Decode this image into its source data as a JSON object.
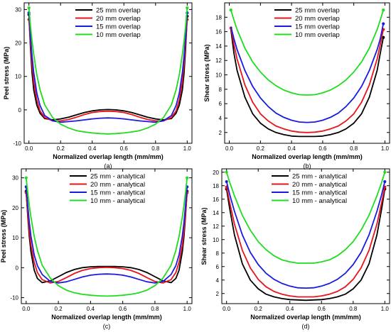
{
  "colors": {
    "black": "#000000",
    "red": "#e8141b",
    "blue": "#1a1ae0",
    "green": "#1fdc1f"
  },
  "chart_data": [
    {
      "type": "line",
      "caption": "(a)",
      "xlabel": "Normalized overlap length (mm/mm)",
      "ylabel": "Peel stress (MPa)",
      "xlim": [
        -0.03,
        1.03
      ],
      "ylim": [
        -10,
        32
      ],
      "xticks": [
        "0.0",
        "0.2",
        "0.4",
        "0.6",
        "0.8",
        "1.0"
      ],
      "yticks": [
        "-10",
        "0",
        "10",
        "20",
        "30"
      ],
      "legend_position": "top-center",
      "x": [
        0,
        0.01,
        0.02,
        0.03,
        0.05,
        0.07,
        0.1,
        0.15,
        0.2,
        0.25,
        0.3,
        0.35,
        0.4,
        0.45,
        0.5,
        0.55,
        0.6,
        0.65,
        0.7,
        0.75,
        0.8,
        0.85,
        0.9,
        0.93,
        0.95,
        0.97,
        0.98,
        0.99,
        1.0
      ],
      "series": [
        {
          "name": "25 mm overlap",
          "color": "black",
          "markers": [
            0,
            28
          ],
          "values": [
            28.5,
            18.3,
            11,
            6,
            1.4,
            -1,
            -2.6,
            -3,
            -2.7,
            -2.2,
            -1.5,
            -0.8,
            -0.3,
            0,
            0.1,
            0,
            -0.3,
            -0.8,
            -1.5,
            -2.2,
            -2.7,
            -3,
            -2.6,
            -1,
            1.4,
            6,
            11,
            18.3,
            28
          ]
        },
        {
          "name": "20 mm overlap",
          "color": "red",
          "markers": [
            0,
            28
          ],
          "values": [
            27,
            19.8,
            13.5,
            8.5,
            3,
            -0.3,
            -2.3,
            -3.3,
            -3.3,
            -2.9,
            -2.2,
            -1.4,
            -0.8,
            -0.5,
            -0.4,
            -0.5,
            -0.8,
            -1.4,
            -2.2,
            -2.9,
            -3.3,
            -3.3,
            -2.3,
            -0.3,
            3,
            8.5,
            13.5,
            19.8,
            27
          ]
        },
        {
          "name": "15 mm overlap",
          "color": "blue",
          "markers": [
            0,
            28
          ],
          "values": [
            29,
            21.8,
            16,
            11.2,
            5,
            1.3,
            -1.7,
            -3.3,
            -3.7,
            -3.5,
            -3.3,
            -3,
            -2.7,
            -2.5,
            -2.4,
            -2.5,
            -2.7,
            -3,
            -3.3,
            -3.5,
            -3.7,
            -3.3,
            -1.7,
            1.3,
            5,
            11.2,
            16,
            21.8,
            29
          ]
        },
        {
          "name": "10 mm overlap",
          "color": "green",
          "markers": [
            0,
            28
          ],
          "values": [
            30.5,
            25,
            20.5,
            16.7,
            10.5,
            6,
            1.5,
            -2.3,
            -4.3,
            -5.4,
            -6.2,
            -6.6,
            -6.9,
            -7.1,
            -7.2,
            -7.1,
            -6.9,
            -6.6,
            -6.2,
            -5.4,
            -4.3,
            -2.3,
            1.5,
            6,
            10.5,
            16.7,
            20.5,
            25,
            30.5
          ]
        }
      ]
    },
    {
      "type": "line",
      "caption": "(b)",
      "xlabel": "Normalized overlap length (mm/mm)",
      "ylabel": "Shear stress (MPa)",
      "xlim": [
        -0.03,
        1.03
      ],
      "ylim": [
        0.5,
        20
      ],
      "xticks": [
        "0.0",
        "0.2",
        "0.4",
        "0.6",
        "0.8",
        "1.0"
      ],
      "yticks": [
        "2",
        "4",
        "6",
        "8",
        "10",
        "12",
        "14",
        "16",
        "18"
      ],
      "legend_position": "top-center",
      "x": [
        0.01,
        0.03,
        0.05,
        0.1,
        0.15,
        0.2,
        0.25,
        0.3,
        0.35,
        0.4,
        0.45,
        0.5,
        0.55,
        0.6,
        0.65,
        0.7,
        0.75,
        0.8,
        0.85,
        0.9,
        0.95,
        0.97,
        0.99
      ],
      "series": [
        {
          "name": "25 mm overlap",
          "color": "black",
          "markers": [
            22
          ],
          "values": [
            16.3,
            13,
            10.6,
            6.9,
            4.6,
            3.3,
            2.5,
            2,
            1.7,
            1.5,
            1.45,
            1.45,
            1.45,
            1.5,
            1.7,
            2,
            2.5,
            3.3,
            4.6,
            6.9,
            10.6,
            13,
            15.2
          ]
        },
        {
          "name": "20 mm overlap",
          "color": "red",
          "markers": [
            0,
            22
          ],
          "values": [
            16.5,
            14.2,
            12.2,
            8.6,
            6.2,
            4.6,
            3.6,
            2.9,
            2.5,
            2.2,
            2.05,
            2,
            2.05,
            2.2,
            2.5,
            2.9,
            3.6,
            4.6,
            6.2,
            8.6,
            12.2,
            14.2,
            16.3
          ]
        },
        {
          "name": "15 mm overlap",
          "color": "blue",
          "markers": [
            22
          ],
          "values": [
            16.7,
            15,
            13.5,
            10.6,
            8.4,
            6.8,
            5.6,
            4.7,
            4.1,
            3.7,
            3.45,
            3.4,
            3.45,
            3.7,
            4.1,
            4.7,
            5.6,
            6.8,
            8.4,
            10.6,
            13.5,
            15,
            17.1
          ]
        },
        {
          "name": "10 mm overlap",
          "color": "green",
          "markers": [
            0,
            22
          ],
          "values": [
            19,
            17.6,
            16.3,
            13.7,
            11.8,
            10.4,
            9.3,
            8.5,
            7.9,
            7.5,
            7.25,
            7.2,
            7.25,
            7.5,
            7.9,
            8.5,
            9.3,
            10.4,
            11.8,
            13.7,
            16.3,
            17.6,
            19
          ]
        }
      ]
    },
    {
      "type": "line",
      "caption": "(c)",
      "xlabel": "Normalized overlap length (mm/mm)",
      "ylabel": "Peel stress (MPa)",
      "xlim": [
        -0.03,
        1.03
      ],
      "ylim": [
        -12,
        33
      ],
      "xticks": [
        "0.0",
        "0.2",
        "0.4",
        "0.6",
        "0.8",
        "1.0"
      ],
      "yticks": [
        "-10",
        "0",
        "10",
        "20",
        "30"
      ],
      "legend_position": "top-center",
      "x": [
        0,
        0.01,
        0.02,
        0.03,
        0.05,
        0.07,
        0.1,
        0.15,
        0.2,
        0.25,
        0.3,
        0.35,
        0.4,
        0.45,
        0.5,
        0.55,
        0.6,
        0.65,
        0.7,
        0.75,
        0.8,
        0.85,
        0.9,
        0.93,
        0.95,
        0.97,
        0.98,
        0.99,
        1.0
      ],
      "series": [
        {
          "name": "25 mm - analytical",
          "color": "black",
          "markers": [
            0,
            28
          ],
          "values": [
            25.5,
            17,
            10.2,
            5.2,
            -0.8,
            -3.6,
            -5,
            -4.4,
            -3,
            -1.6,
            -0.6,
            0,
            0.3,
            0.4,
            0.4,
            0.4,
            0.3,
            0,
            -0.6,
            -1.6,
            -3,
            -4.4,
            -5,
            -3.6,
            -0.8,
            5.2,
            10.2,
            17,
            25.5
          ]
        },
        {
          "name": "20 mm - analytical",
          "color": "red",
          "markers": [
            0,
            28
          ],
          "values": [
            25,
            18,
            12,
            7.4,
            1.8,
            -1.6,
            -4,
            -5.1,
            -4.6,
            -3.3,
            -1.9,
            -0.9,
            -0.3,
            0,
            0.1,
            0,
            -0.3,
            -0.9,
            -1.9,
            -3.3,
            -4.6,
            -5.1,
            -4,
            -1.6,
            1.8,
            7.4,
            12,
            18,
            25
          ]
        },
        {
          "name": "15 mm - analytical",
          "color": "blue",
          "markers": [
            0,
            28
          ],
          "values": [
            27,
            20.5,
            15,
            10.4,
            4.3,
            0.7,
            -2.3,
            -4.6,
            -5.1,
            -4.7,
            -3.9,
            -3.1,
            -2.5,
            -2.2,
            -2.1,
            -2.2,
            -2.5,
            -3.1,
            -3.9,
            -4.7,
            -5.1,
            -4.6,
            -2.3,
            0.7,
            4.3,
            10.4,
            15,
            20.5,
            27
          ]
        },
        {
          "name": "10 mm - analytical",
          "color": "green",
          "markers": [
            0,
            28
          ],
          "values": [
            30,
            25,
            20.6,
            16.8,
            10.5,
            5.8,
            0.8,
            -3.5,
            -6,
            -7.5,
            -8.4,
            -8.9,
            -9.2,
            -9.4,
            -9.5,
            -9.4,
            -9.2,
            -8.9,
            -8.4,
            -7.5,
            -6,
            -3.5,
            0.8,
            5.8,
            10.5,
            16.8,
            20.6,
            25,
            30
          ]
        }
      ]
    },
    {
      "type": "line",
      "caption": "(d)",
      "xlabel": "Normalized overlap length (mm/mm)",
      "ylabel": "Shear stress (MPa)",
      "xlim": [
        -0.03,
        1.03
      ],
      "ylim": [
        0.5,
        20.5
      ],
      "xticks": [
        "0.0",
        "0.2",
        "0.4",
        "0.6",
        "0.8",
        "1.0"
      ],
      "yticks": [
        "2",
        "4",
        "6",
        "8",
        "10",
        "12",
        "14",
        "16",
        "18",
        "20"
      ],
      "legend_position": "top-center",
      "x": [
        0,
        0.02,
        0.05,
        0.1,
        0.15,
        0.2,
        0.25,
        0.3,
        0.35,
        0.4,
        0.45,
        0.5,
        0.55,
        0.6,
        0.65,
        0.7,
        0.75,
        0.8,
        0.85,
        0.9,
        0.95,
        0.98,
        1.0
      ],
      "series": [
        {
          "name": "25 mm - analytical",
          "color": "black",
          "markers": [
            0,
            22
          ],
          "values": [
            17.5,
            14.6,
            10.7,
            6.4,
            4,
            2.7,
            1.9,
            1.5,
            1.25,
            1.1,
            1.05,
            1,
            1.05,
            1.1,
            1.25,
            1.5,
            1.9,
            2.7,
            4,
            6.4,
            10.7,
            14.6,
            17.5
          ]
        },
        {
          "name": "20 mm - analytical",
          "color": "red",
          "markers": [
            0,
            22
          ],
          "values": [
            17.8,
            15.5,
            12.3,
            8.4,
            5.8,
            4.1,
            3,
            2.3,
            1.9,
            1.65,
            1.5,
            1.5,
            1.5,
            1.65,
            1.9,
            2.3,
            3,
            4.1,
            5.8,
            8.4,
            12.3,
            15.5,
            17.8
          ]
        },
        {
          "name": "15 mm - analytical",
          "color": "blue",
          "markers": [
            0,
            22
          ],
          "values": [
            18.6,
            16.7,
            14.2,
            10.7,
            8.1,
            6.3,
            5,
            4.1,
            3.5,
            3.1,
            2.85,
            2.8,
            2.85,
            3.1,
            3.5,
            4.1,
            5,
            6.3,
            8.1,
            10.7,
            14.2,
            16.7,
            18.6
          ]
        },
        {
          "name": "10 mm - analytical",
          "color": "green",
          "markers": [
            0,
            22
          ],
          "values": [
            20,
            18.5,
            16.5,
            13.6,
            11.4,
            9.7,
            8.5,
            7.6,
            7,
            6.7,
            6.5,
            6.5,
            6.5,
            6.7,
            7,
            7.6,
            8.5,
            9.7,
            11.4,
            13.6,
            16.5,
            18.5,
            20
          ]
        }
      ]
    }
  ]
}
